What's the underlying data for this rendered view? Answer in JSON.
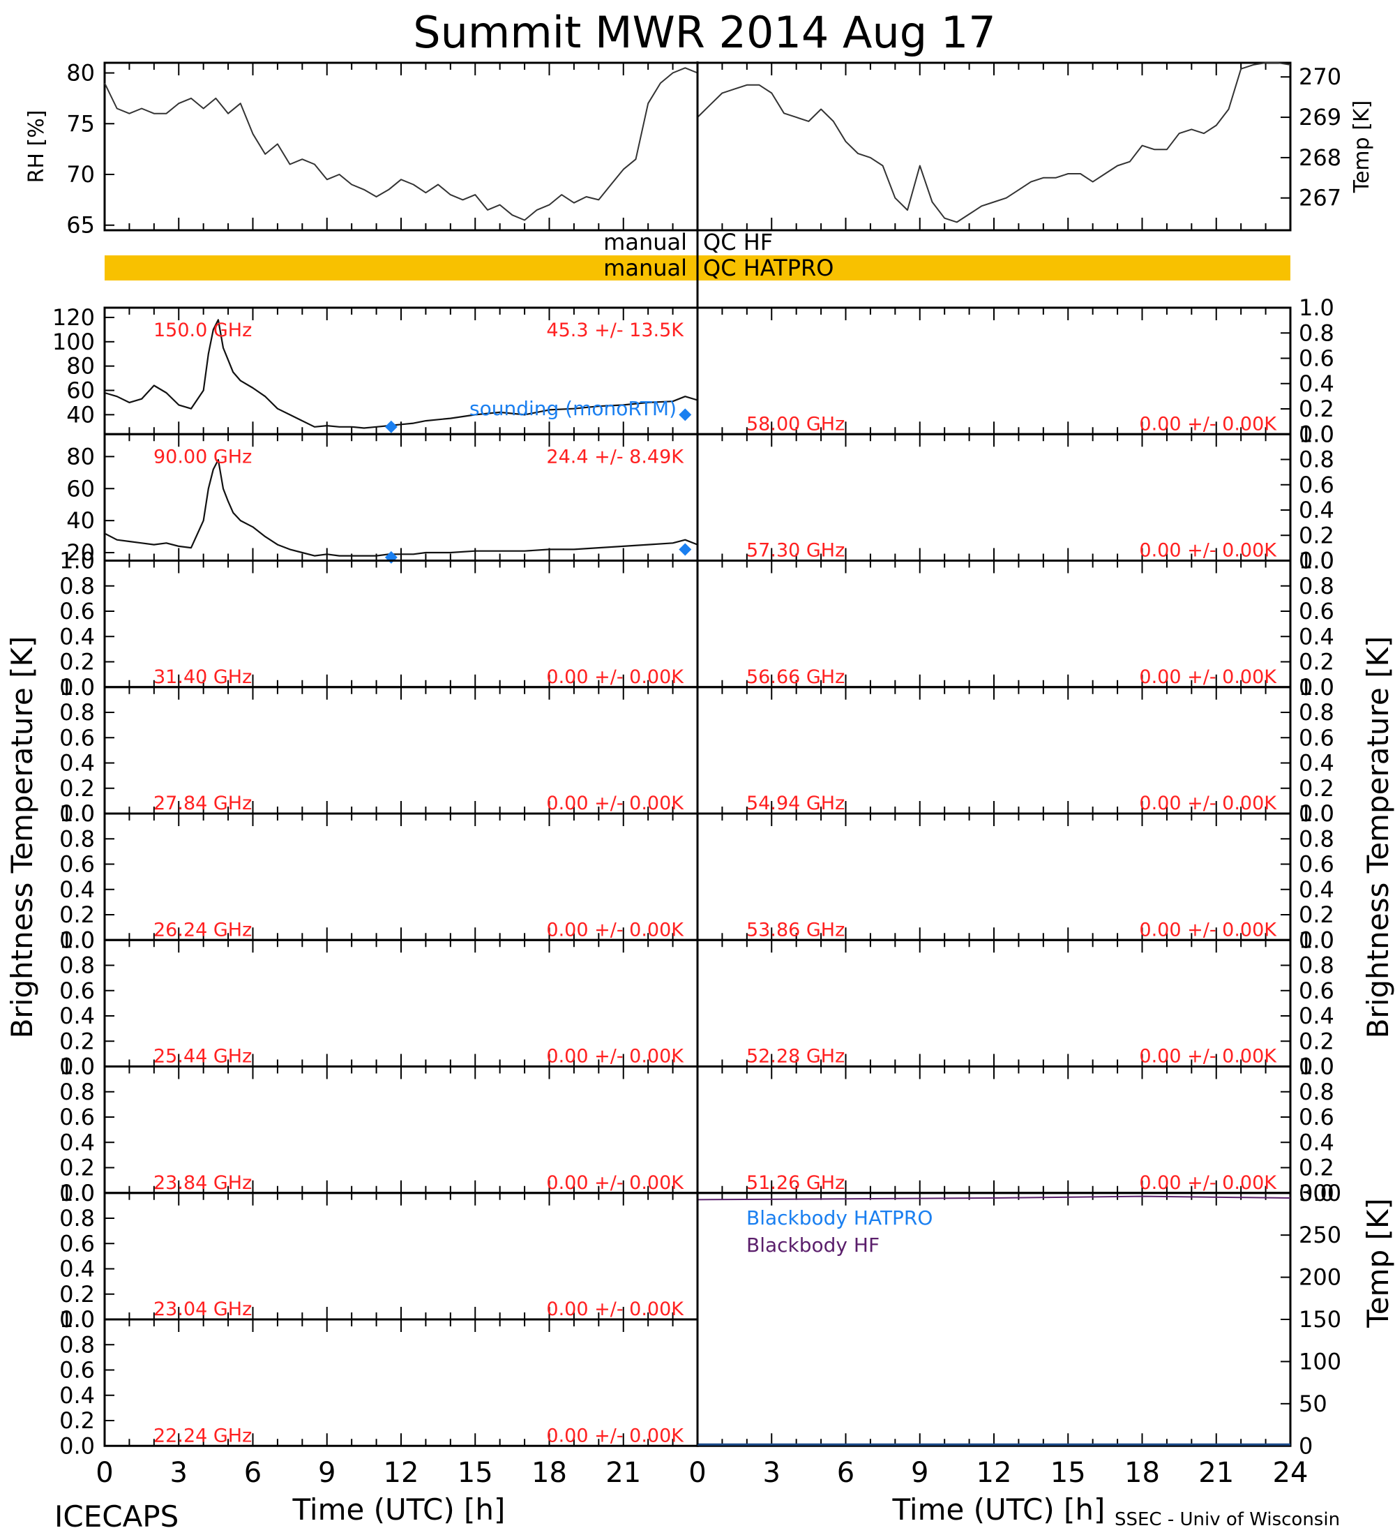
{
  "figure": {
    "title": "Summit MWR 2014 Aug 17",
    "footer_left": "ICECAPS",
    "footer_right": "SSEC - Univ of Wisconsin",
    "xlabel": "Time (UTC) [h]",
    "ylabel_tb": "Brightness Temperature [K]",
    "colors": {
      "frame": "#000000",
      "flag_bar": "#f8c100",
      "annot_red": "#ff2020",
      "sounding_blue": "#1a7ff0",
      "bb_purple": "#5a1e6b"
    }
  },
  "chart_data": [
    {
      "id": "rh",
      "type": "line",
      "ylabel": "RH [%]",
      "ylim": [
        64.5,
        81
      ],
      "yticks": [
        65,
        70,
        75,
        80
      ],
      "xlim": [
        0,
        24
      ],
      "series": [
        {
          "x": [
            0,
            0.5,
            1,
            1.5,
            2,
            2.5,
            3,
            3.5,
            4,
            4.5,
            5,
            5.5,
            6,
            6.5,
            7,
            7.5,
            8,
            8.5,
            9,
            9.5,
            10,
            10.5,
            11,
            11.5,
            12,
            12.5,
            13,
            13.5,
            14,
            14.5,
            15,
            15.5,
            16,
            16.5,
            17,
            17.5,
            18,
            18.5,
            19,
            19.5,
            20,
            20.5,
            21,
            21.5,
            22,
            22.5,
            23,
            23.5,
            24
          ],
          "y": [
            79,
            76.5,
            76,
            76.5,
            76,
            76,
            77,
            77.5,
            76.5,
            77.5,
            76,
            77,
            74,
            72,
            73,
            71,
            71.5,
            71,
            69.5,
            70,
            69,
            68.5,
            67.8,
            68.5,
            69.5,
            69,
            68.2,
            69,
            68,
            67.5,
            68,
            66.5,
            67,
            66,
            65.5,
            66.5,
            67,
            68,
            67.2,
            67.8,
            67.5,
            69,
            70.5,
            71.5,
            77,
            79,
            80,
            80.5,
            80
          ]
        }
      ]
    },
    {
      "id": "temp",
      "type": "line",
      "ylabel": "Temp [K]",
      "ylim": [
        266.2,
        270.35
      ],
      "yticks": [
        267,
        268,
        269,
        270
      ],
      "xlim": [
        0,
        24
      ],
      "series": [
        {
          "x": [
            0,
            0.5,
            1,
            1.5,
            2,
            2.5,
            3,
            3.5,
            4,
            4.5,
            5,
            5.5,
            6,
            6.5,
            7,
            7.5,
            8,
            8.5,
            9,
            9.5,
            10,
            10.5,
            11,
            11.5,
            12,
            12.5,
            13,
            13.5,
            14,
            14.5,
            15,
            15.5,
            16,
            16.5,
            17,
            17.5,
            18,
            18.5,
            19,
            19.5,
            20,
            20.5,
            21,
            21.5,
            22,
            22.5,
            23,
            23.5,
            24
          ],
          "y": [
            269,
            269.3,
            269.6,
            269.7,
            269.8,
            269.8,
            269.6,
            269.1,
            269.0,
            268.9,
            269.2,
            268.9,
            268.4,
            268.1,
            268.0,
            267.8,
            267.0,
            266.7,
            267.8,
            266.9,
            266.5,
            266.4,
            266.6,
            266.8,
            266.9,
            267.0,
            267.2,
            267.4,
            267.5,
            267.5,
            267.6,
            267.6,
            267.4,
            267.6,
            267.8,
            267.9,
            268.3,
            268.2,
            268.2,
            268.6,
            268.7,
            268.6,
            268.8,
            269.2,
            270.2,
            270.3,
            270.5,
            270.4,
            270.3
          ]
        }
      ]
    },
    {
      "id": "ch150",
      "type": "line",
      "freq_label": "150.0 GHz",
      "stat_label": "45.3 +/-  13.5K",
      "ylim": [
        24,
        128
      ],
      "yticks": [
        40,
        60,
        80,
        100,
        120
      ],
      "xlim": [
        0,
        24
      ],
      "series": [
        {
          "x": [
            0,
            0.5,
            1,
            1.5,
            2,
            2.5,
            3,
            3.5,
            4,
            4.2,
            4.4,
            4.6,
            4.8,
            5,
            5.2,
            5.5,
            6,
            6.5,
            7,
            7.5,
            8,
            8.5,
            9,
            9.5,
            10,
            10.5,
            11,
            11.5,
            12,
            12.5,
            13,
            14,
            15,
            16,
            17,
            18,
            19,
            20,
            21,
            22,
            23,
            23.5,
            24
          ],
          "y": [
            58,
            55,
            50,
            53,
            64,
            58,
            48,
            45,
            60,
            90,
            110,
            118,
            95,
            85,
            75,
            68,
            62,
            55,
            45,
            40,
            35,
            30,
            31,
            30,
            30,
            29,
            30,
            31,
            32,
            33,
            35,
            37,
            40,
            42,
            40,
            44,
            45,
            47,
            48,
            50,
            51,
            55,
            52
          ]
        }
      ],
      "sounding": {
        "x": [
          11.6,
          23.5
        ],
        "y": [
          30,
          40
        ]
      },
      "sounding_label": "sounding (monoRTM)"
    },
    {
      "id": "ch90",
      "type": "line",
      "freq_label": "90.00 GHz",
      "stat_label": "24.4 +/-  8.49K",
      "ylim": [
        15,
        94
      ],
      "yticks": [
        20,
        40,
        60,
        80
      ],
      "xlim": [
        0,
        24
      ],
      "series": [
        {
          "x": [
            0,
            0.5,
            1,
            1.5,
            2,
            2.5,
            3,
            3.5,
            4,
            4.2,
            4.4,
            4.6,
            4.8,
            5,
            5.2,
            5.5,
            6,
            6.5,
            7,
            7.5,
            8,
            8.5,
            9,
            9.5,
            10,
            10.5,
            11,
            11.5,
            12,
            12.5,
            13,
            14,
            15,
            16,
            17,
            18,
            19,
            20,
            21,
            22,
            23,
            23.5,
            24
          ],
          "y": [
            32,
            28,
            27,
            26,
            25,
            26,
            24,
            23,
            40,
            60,
            72,
            78,
            60,
            52,
            45,
            40,
            36,
            30,
            25,
            22,
            20,
            18,
            19,
            18,
            18,
            18,
            18,
            19,
            19,
            19,
            20,
            20,
            21,
            21,
            21,
            22,
            22,
            23,
            24,
            25,
            26,
            28,
            25
          ]
        }
      ],
      "sounding": {
        "x": [
          11.6,
          23.5
        ],
        "y": [
          17,
          22
        ]
      }
    },
    {
      "id": "ch58",
      "type": "line",
      "freq_label": "58.00 GHz",
      "stat_label": "0.00 +/-  0.00K",
      "ylim": [
        0,
        1
      ]
    },
    {
      "id": "ch57",
      "type": "line",
      "freq_label": "57.30 GHz",
      "stat_label": "0.00 +/-  0.00K",
      "ylim": [
        0,
        1
      ]
    },
    {
      "id": "ch31",
      "type": "line",
      "freq_label": "31.40 GHz",
      "stat_label": "0.00 +/-  0.00K",
      "ylim": [
        0,
        1
      ]
    },
    {
      "id": "ch56",
      "type": "line",
      "freq_label": "56.66 GHz",
      "stat_label": "0.00 +/-  0.00K",
      "ylim": [
        0,
        1
      ]
    },
    {
      "id": "ch27",
      "type": "line",
      "freq_label": "27.84 GHz",
      "stat_label": "0.00 +/-  0.00K",
      "ylim": [
        0,
        1
      ]
    },
    {
      "id": "ch54",
      "type": "line",
      "freq_label": "54.94 GHz",
      "stat_label": "0.00 +/-  0.00K",
      "ylim": [
        0,
        1
      ]
    },
    {
      "id": "ch26",
      "type": "line",
      "freq_label": "26.24 GHz",
      "stat_label": "0.00 +/-  0.00K",
      "ylim": [
        0,
        1
      ]
    },
    {
      "id": "ch53",
      "type": "line",
      "freq_label": "53.86 GHz",
      "stat_label": "0.00 +/-  0.00K",
      "ylim": [
        0,
        1
      ]
    },
    {
      "id": "ch25",
      "type": "line",
      "freq_label": "25.44 GHz",
      "stat_label": "0.00 +/-  0.00K",
      "ylim": [
        0,
        1
      ]
    },
    {
      "id": "ch52",
      "type": "line",
      "freq_label": "52.28 GHz",
      "stat_label": "0.00 +/-  0.00K",
      "ylim": [
        0,
        1
      ]
    },
    {
      "id": "ch23a",
      "type": "line",
      "freq_label": "23.84 GHz",
      "stat_label": "0.00 +/-  0.00K",
      "ylim": [
        0,
        1
      ]
    },
    {
      "id": "ch51",
      "type": "line",
      "freq_label": "51.26 GHz",
      "stat_label": "0.00 +/-  0.00K",
      "ylim": [
        0,
        1
      ]
    },
    {
      "id": "ch23b",
      "type": "line",
      "freq_label": "23.04 GHz",
      "stat_label": "0.00 +/-  0.00K",
      "ylim": [
        0,
        1
      ]
    },
    {
      "id": "ch22",
      "type": "line",
      "freq_label": "22.24 GHz",
      "stat_label": "0.00 +/-  0.00K",
      "ylim": [
        0,
        1
      ]
    },
    {
      "id": "blackbody",
      "type": "line",
      "ylabel": "Temp [K]",
      "ylim": [
        0,
        300
      ],
      "yticks": [
        0,
        50,
        100,
        150,
        200,
        250,
        300
      ],
      "xlim": [
        0,
        24
      ],
      "series": [
        {
          "name": "Blackbody HATPRO",
          "x": [
            0,
            24
          ],
          "y": [
            0,
            0
          ]
        },
        {
          "name": "Blackbody HF",
          "x": [
            0,
            6,
            12,
            18,
            24
          ],
          "y": [
            292,
            293,
            294,
            296,
            294
          ]
        }
      ]
    }
  ],
  "qc": {
    "hf_label_left": "manual",
    "hf_label_right": "QC HF",
    "hatpro_label_left": "manual",
    "hatpro_label_right": "QC HATPRO"
  },
  "x_ticks_left": [
    "0",
    "3",
    "6",
    "9",
    "12",
    "15",
    "18",
    "21"
  ],
  "x_ticks_right": [
    "0",
    "3",
    "6",
    "9",
    "12",
    "15",
    "18",
    "21",
    "24"
  ],
  "unit_ticks": [
    "0.0",
    "0.2",
    "0.4",
    "0.6",
    "0.8",
    "1.0"
  ]
}
